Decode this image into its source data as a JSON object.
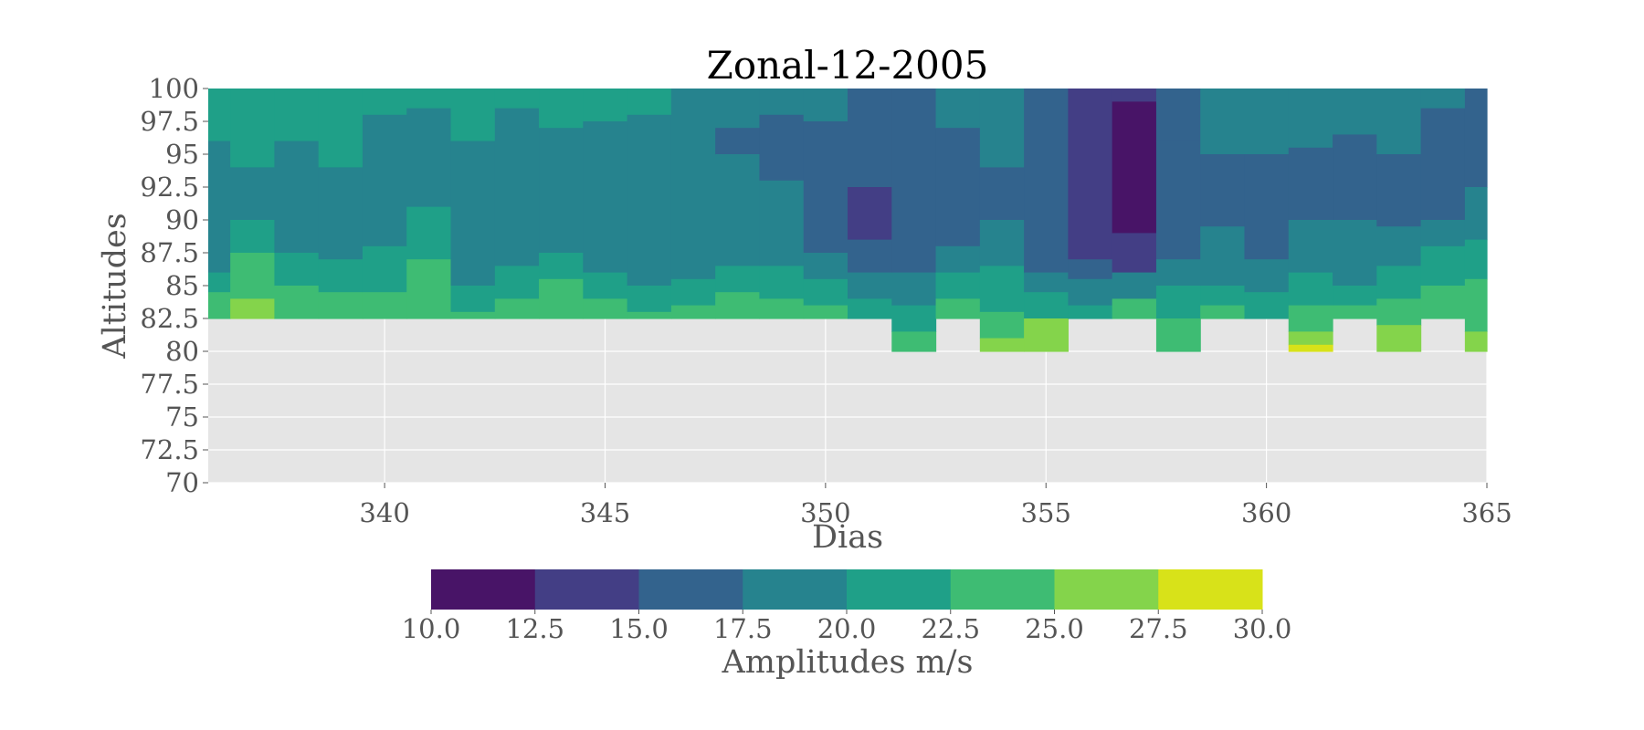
{
  "chart_data": {
    "type": "heatmap",
    "subtype": "filled-contour",
    "title": "Zonal-12-2005",
    "xlabel": "Dias",
    "ylabel": "Altitudes",
    "xlim": [
      336,
      365
    ],
    "ylim": [
      70,
      100
    ],
    "xticks": [
      "340",
      "345",
      "350",
      "355",
      "360",
      "365"
    ],
    "yticks": [
      "100",
      "97.5",
      "95",
      "92.5",
      "90",
      "87.5",
      "85",
      "82.5",
      "80",
      "77.5",
      "75",
      "72.5",
      "70"
    ],
    "grid": true,
    "background_color": "#e5e5e5",
    "days": [
      336,
      337,
      338,
      339,
      340,
      341,
      342,
      343,
      344,
      345,
      346,
      347,
      348,
      349,
      350,
      351,
      352,
      353,
      354,
      355,
      356,
      357,
      358,
      359,
      360,
      361,
      362,
      363,
      364,
      365
    ],
    "lower_boundary_altitude": [
      82.5,
      82.5,
      82.5,
      82.5,
      82.5,
      82.5,
      82.5,
      82.5,
      82.5,
      82.5,
      82.5,
      82.5,
      82.5,
      82.5,
      82.5,
      82.5,
      80,
      82.5,
      80,
      80,
      82.5,
      82.5,
      80,
      82.5,
      82.5,
      80,
      82.5,
      80,
      82.5,
      80
    ],
    "amplitude_bands_upper_altitude": {
      "levels_from_top": [
        "20.0-22.5 / 17.5-20.0 (top)",
        "17.5-20.0",
        "20.0-22.5",
        "22.5-25.0",
        "25.0-27.5"
      ],
      "note": "Filled contour approximated as vertical stacks of colour bands per day"
    },
    "columns": [
      {
        "day": 336,
        "bands": [
          [
            100,
            96,
            20.5
          ],
          [
            96,
            86,
            18.5
          ],
          [
            86,
            84.5,
            21
          ],
          [
            84.5,
            82.5,
            23.5
          ]
        ]
      },
      {
        "day": 337,
        "bands": [
          [
            100,
            94,
            21
          ],
          [
            94,
            90,
            18.5
          ],
          [
            90,
            87.5,
            21
          ],
          [
            87.5,
            84,
            23.5
          ],
          [
            84,
            82.5,
            26
          ]
        ]
      },
      {
        "day": 338,
        "bands": [
          [
            100,
            96,
            21
          ],
          [
            96,
            87.5,
            18.5
          ],
          [
            87.5,
            85,
            21
          ],
          [
            85,
            82.5,
            23.5
          ]
        ]
      },
      {
        "day": 339,
        "bands": [
          [
            100,
            94,
            21
          ],
          [
            94,
            87,
            18.5
          ],
          [
            87,
            84.5,
            21
          ],
          [
            84.5,
            82.5,
            23.5
          ]
        ]
      },
      {
        "day": 340,
        "bands": [
          [
            100,
            98,
            21
          ],
          [
            98,
            88,
            18.5
          ],
          [
            88,
            84.5,
            21
          ],
          [
            84.5,
            82.5,
            23.5
          ]
        ]
      },
      {
        "day": 341,
        "bands": [
          [
            100,
            98.5,
            21
          ],
          [
            98.5,
            91,
            18.5
          ],
          [
            91,
            87,
            21
          ],
          [
            87,
            82.5,
            23.5
          ]
        ]
      },
      {
        "day": 342,
        "bands": [
          [
            100,
            96,
            21
          ],
          [
            96,
            85,
            18.5
          ],
          [
            85,
            83,
            21
          ],
          [
            83,
            82.5,
            23.5
          ]
        ]
      },
      {
        "day": 343,
        "bands": [
          [
            100,
            98.5,
            21
          ],
          [
            98.5,
            86.5,
            18.5
          ],
          [
            86.5,
            84,
            21
          ],
          [
            84,
            82.5,
            23.5
          ]
        ]
      },
      {
        "day": 344,
        "bands": [
          [
            100,
            97,
            21
          ],
          [
            97,
            87.5,
            18.5
          ],
          [
            87.5,
            85.5,
            21
          ],
          [
            85.5,
            82.5,
            23.5
          ]
        ]
      },
      {
        "day": 345,
        "bands": [
          [
            100,
            97.5,
            21
          ],
          [
            97.5,
            86,
            18.5
          ],
          [
            86,
            84,
            21
          ],
          [
            84,
            82.5,
            23.5
          ]
        ]
      },
      {
        "day": 346,
        "bands": [
          [
            100,
            98,
            21
          ],
          [
            98,
            85,
            18.5
          ],
          [
            85,
            83,
            21
          ],
          [
            83,
            82.5,
            23.5
          ]
        ]
      },
      {
        "day": 347,
        "bands": [
          [
            100,
            95,
            18.5
          ],
          [
            95,
            85.5,
            18.5
          ],
          [
            85.5,
            83.5,
            21
          ],
          [
            83.5,
            82.5,
            23.5
          ]
        ]
      },
      {
        "day": 348,
        "bands": [
          [
            100,
            97,
            18.5
          ],
          [
            97,
            95,
            16
          ],
          [
            95,
            86.5,
            18.5
          ],
          [
            86.5,
            84.5,
            21
          ],
          [
            84.5,
            82.5,
            23.5
          ]
        ]
      },
      {
        "day": 349,
        "bands": [
          [
            100,
            98,
            18.5
          ],
          [
            98,
            93,
            16
          ],
          [
            93,
            86.5,
            18.5
          ],
          [
            86.5,
            84,
            21
          ],
          [
            84,
            82.5,
            23.5
          ]
        ]
      },
      {
        "day": 350,
        "bands": [
          [
            100,
            97.5,
            18.5
          ],
          [
            97.5,
            87.5,
            16
          ],
          [
            87.5,
            85.5,
            18.5
          ],
          [
            85.5,
            83.5,
            21
          ],
          [
            83.5,
            82.5,
            23.5
          ]
        ]
      },
      {
        "day": 351,
        "bands": [
          [
            100,
            92.5,
            16
          ],
          [
            92.5,
            88.5,
            13.5
          ],
          [
            88.5,
            86,
            16
          ],
          [
            86,
            84,
            18.5
          ],
          [
            84,
            82.5,
            21
          ]
        ]
      },
      {
        "day": 352,
        "bands": [
          [
            100,
            86,
            16
          ],
          [
            86,
            83.5,
            18.5
          ],
          [
            83.5,
            81.5,
            21
          ],
          [
            81.5,
            80,
            23.5
          ]
        ]
      },
      {
        "day": 353,
        "bands": [
          [
            100,
            97,
            18.5
          ],
          [
            97,
            88,
            16
          ],
          [
            88,
            86,
            18.5
          ],
          [
            86,
            84,
            21
          ],
          [
            84,
            82.5,
            23.5
          ]
        ]
      },
      {
        "day": 354,
        "bands": [
          [
            100,
            94,
            18.5
          ],
          [
            94,
            90,
            16
          ],
          [
            90,
            86.5,
            18.5
          ],
          [
            86.5,
            83,
            21
          ],
          [
            83,
            81,
            23.5
          ],
          [
            81,
            80,
            26
          ]
        ]
      },
      {
        "day": 355,
        "bands": [
          [
            100,
            86,
            16
          ],
          [
            86,
            84.5,
            18.5
          ],
          [
            84.5,
            82.5,
            21
          ],
          [
            82.5,
            80,
            26
          ]
        ]
      },
      {
        "day": 356,
        "bands": [
          [
            100,
            87,
            13.5
          ],
          [
            87,
            85.5,
            16
          ],
          [
            85.5,
            83.5,
            18.5
          ],
          [
            83.5,
            82.5,
            21
          ]
        ]
      },
      {
        "day": 357,
        "bands": [
          [
            100,
            99,
            13.5
          ],
          [
            99,
            89,
            11
          ],
          [
            89,
            86,
            13.5
          ],
          [
            86,
            84,
            18.5
          ],
          [
            84,
            82.5,
            23.5
          ]
        ]
      },
      {
        "day": 358,
        "bands": [
          [
            100,
            96,
            16
          ],
          [
            96,
            87,
            16
          ],
          [
            87,
            85,
            18.5
          ],
          [
            85,
            82.5,
            21
          ],
          [
            82.5,
            80,
            23.5
          ]
        ]
      },
      {
        "day": 359,
        "bands": [
          [
            100,
            95,
            18.5
          ],
          [
            95,
            89.5,
            16
          ],
          [
            89.5,
            85,
            18.5
          ],
          [
            85,
            83.5,
            21
          ],
          [
            83.5,
            82.5,
            23.5
          ]
        ]
      },
      {
        "day": 360,
        "bands": [
          [
            100,
            95,
            18.5
          ],
          [
            95,
            87,
            16
          ],
          [
            87,
            84.5,
            18.5
          ],
          [
            84.5,
            82.5,
            21
          ]
        ]
      },
      {
        "day": 361,
        "bands": [
          [
            100,
            95.5,
            18.5
          ],
          [
            95.5,
            90,
            16
          ],
          [
            90,
            86,
            18.5
          ],
          [
            86,
            83.5,
            21
          ],
          [
            83.5,
            81.5,
            23.5
          ],
          [
            81.5,
            80.5,
            26
          ],
          [
            80.5,
            80,
            28.5
          ]
        ]
      },
      {
        "day": 362,
        "bands": [
          [
            100,
            96.5,
            18.5
          ],
          [
            96.5,
            90,
            16
          ],
          [
            90,
            85,
            18.5
          ],
          [
            85,
            83.5,
            21
          ],
          [
            83.5,
            82.5,
            23.5
          ]
        ]
      },
      {
        "day": 363,
        "bands": [
          [
            100,
            95,
            18.5
          ],
          [
            95,
            89.5,
            16
          ],
          [
            89.5,
            86.5,
            18.5
          ],
          [
            86.5,
            84,
            21
          ],
          [
            84,
            82,
            23.5
          ],
          [
            82,
            80,
            26
          ]
        ]
      },
      {
        "day": 364,
        "bands": [
          [
            100,
            98.5,
            18.5
          ],
          [
            98.5,
            90,
            16
          ],
          [
            90,
            88,
            18.5
          ],
          [
            88,
            85,
            21
          ],
          [
            85,
            82.5,
            23.5
          ]
        ]
      },
      {
        "day": 365,
        "bands": [
          [
            100,
            92.5,
            16
          ],
          [
            92.5,
            88.5,
            18.5
          ],
          [
            88.5,
            85.5,
            21
          ],
          [
            85.5,
            81.5,
            23.5
          ],
          [
            81.5,
            80,
            26
          ]
        ]
      }
    ],
    "colorbar": {
      "label": "Amplitudes m/s",
      "levels": [
        10.0,
        12.5,
        15.0,
        17.5,
        20.0,
        22.5,
        25.0,
        27.5,
        30.0
      ],
      "tick_labels": [
        "10.0",
        "12.5",
        "15.0",
        "17.5",
        "20.0",
        "22.5",
        "25.0",
        "27.5",
        "30.0"
      ],
      "colors": [
        "#481467",
        "#433e85",
        "#33638d",
        "#26838e",
        "#1fa088",
        "#3ebc73",
        "#84d44b",
        "#d8e219"
      ],
      "orientation": "horizontal"
    }
  }
}
